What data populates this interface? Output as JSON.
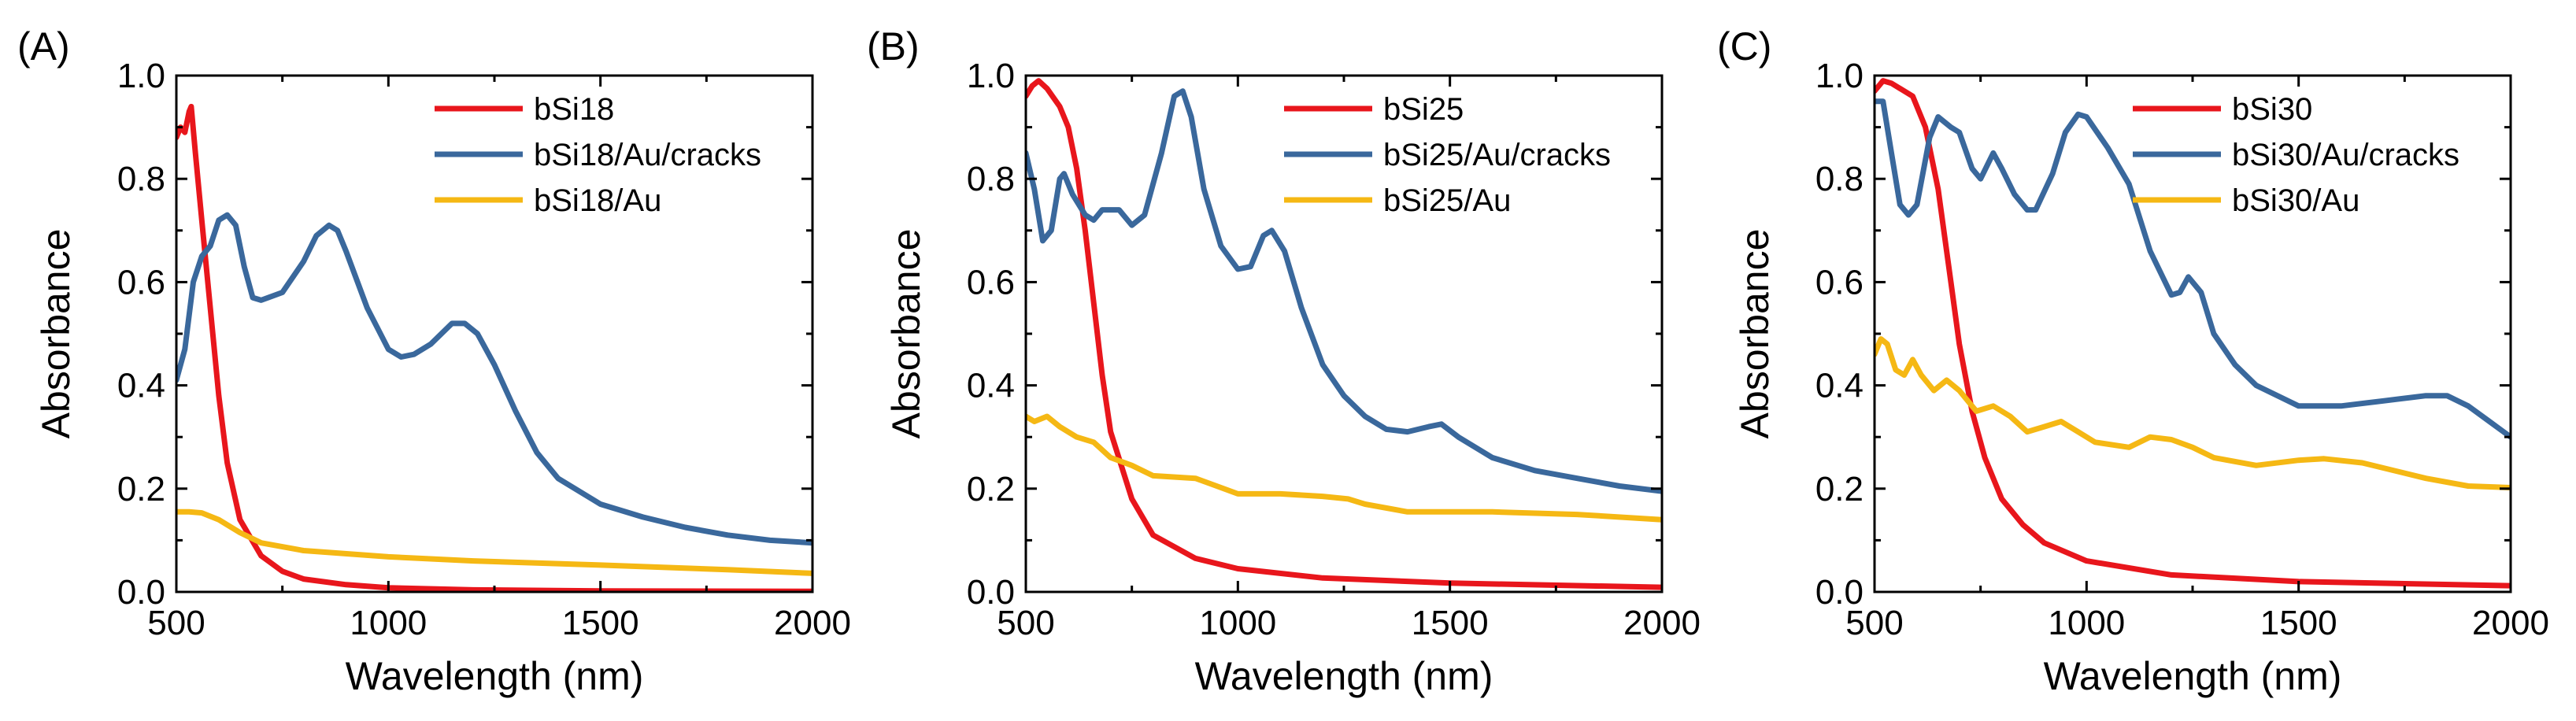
{
  "figure": {
    "colors": {
      "bSi": "#e8161c",
      "cracks": "#3a689c",
      "au": "#f5b814",
      "axis": "#000000"
    }
  },
  "chart_data": [
    {
      "panel": "(A)",
      "type": "line",
      "xlabel": "Wavelength (nm)",
      "ylabel": "Absorbance",
      "xlim": [
        500,
        2000
      ],
      "ylim": [
        0.0,
        1.0
      ],
      "xticks": [
        "500",
        "1000",
        "1500",
        "2000"
      ],
      "yticks": [
        "0.0",
        "0.2",
        "0.4",
        "0.6",
        "0.8",
        "1.0"
      ],
      "legend": "top-right",
      "series": [
        {
          "name": "bSi18",
          "color": "#e8161c",
          "points": [
            [
              500,
              0.88
            ],
            [
              510,
              0.9
            ],
            [
              520,
              0.89
            ],
            [
              530,
              0.93
            ],
            [
              535,
              0.94
            ],
            [
              545,
              0.85
            ],
            [
              560,
              0.72
            ],
            [
              580,
              0.55
            ],
            [
              600,
              0.38
            ],
            [
              620,
              0.25
            ],
            [
              650,
              0.14
            ],
            [
              700,
              0.07
            ],
            [
              750,
              0.04
            ],
            [
              800,
              0.025
            ],
            [
              900,
              0.014
            ],
            [
              1000,
              0.008
            ],
            [
              1200,
              0.004
            ],
            [
              1500,
              0.002
            ],
            [
              2000,
              0.001
            ]
          ]
        },
        {
          "name": "bSi18/Au/cracks",
          "color": "#3a689c",
          "points": [
            [
              500,
              0.41
            ],
            [
              520,
              0.47
            ],
            [
              540,
              0.6
            ],
            [
              560,
              0.65
            ],
            [
              580,
              0.67
            ],
            [
              600,
              0.72
            ],
            [
              620,
              0.73
            ],
            [
              640,
              0.71
            ],
            [
              660,
              0.63
            ],
            [
              680,
              0.57
            ],
            [
              700,
              0.565
            ],
            [
              750,
              0.58
            ],
            [
              800,
              0.64
            ],
            [
              830,
              0.69
            ],
            [
              860,
              0.71
            ],
            [
              880,
              0.7
            ],
            [
              900,
              0.66
            ],
            [
              950,
              0.55
            ],
            [
              1000,
              0.47
            ],
            [
              1030,
              0.455
            ],
            [
              1060,
              0.46
            ],
            [
              1100,
              0.48
            ],
            [
              1150,
              0.52
            ],
            [
              1180,
              0.52
            ],
            [
              1210,
              0.5
            ],
            [
              1250,
              0.44
            ],
            [
              1300,
              0.35
            ],
            [
              1350,
              0.27
            ],
            [
              1400,
              0.22
            ],
            [
              1500,
              0.17
            ],
            [
              1600,
              0.145
            ],
            [
              1700,
              0.125
            ],
            [
              1800,
              0.11
            ],
            [
              1900,
              0.1
            ],
            [
              2000,
              0.095
            ]
          ]
        },
        {
          "name": "bSi18/Au",
          "color": "#f5b814",
          "points": [
            [
              500,
              0.155
            ],
            [
              530,
              0.155
            ],
            [
              560,
              0.153
            ],
            [
              600,
              0.14
            ],
            [
              650,
              0.115
            ],
            [
              700,
              0.095
            ],
            [
              800,
              0.08
            ],
            [
              1000,
              0.068
            ],
            [
              1200,
              0.06
            ],
            [
              1500,
              0.052
            ],
            [
              1800,
              0.043
            ],
            [
              2000,
              0.036
            ]
          ]
        }
      ]
    },
    {
      "panel": "(B)",
      "type": "line",
      "xlabel": "Wavelength (nm)",
      "ylabel": "Absorbance",
      "xlim": [
        500,
        2000
      ],
      "ylim": [
        0.0,
        1.0
      ],
      "xticks": [
        "500",
        "1000",
        "1500",
        "2000"
      ],
      "yticks": [
        "0.0",
        "0.2",
        "0.4",
        "0.6",
        "0.8",
        "1.0"
      ],
      "legend": "top-right",
      "series": [
        {
          "name": "bSi25",
          "color": "#e8161c",
          "points": [
            [
              500,
              0.96
            ],
            [
              515,
              0.98
            ],
            [
              530,
              0.99
            ],
            [
              550,
              0.975
            ],
            [
              580,
              0.94
            ],
            [
              600,
              0.9
            ],
            [
              620,
              0.82
            ],
            [
              640,
              0.7
            ],
            [
              660,
              0.56
            ],
            [
              680,
              0.42
            ],
            [
              700,
              0.31
            ],
            [
              750,
              0.18
            ],
            [
              800,
              0.11
            ],
            [
              900,
              0.065
            ],
            [
              1000,
              0.045
            ],
            [
              1200,
              0.027
            ],
            [
              1500,
              0.017
            ],
            [
              2000,
              0.009
            ]
          ]
        },
        {
          "name": "bSi25/Au/cracks",
          "color": "#3a689c",
          "points": [
            [
              500,
              0.85
            ],
            [
              520,
              0.78
            ],
            [
              540,
              0.68
            ],
            [
              560,
              0.7
            ],
            [
              580,
              0.8
            ],
            [
              590,
              0.81
            ],
            [
              610,
              0.77
            ],
            [
              640,
              0.73
            ],
            [
              660,
              0.72
            ],
            [
              680,
              0.74
            ],
            [
              720,
              0.74
            ],
            [
              750,
              0.71
            ],
            [
              780,
              0.73
            ],
            [
              820,
              0.85
            ],
            [
              850,
              0.96
            ],
            [
              870,
              0.97
            ],
            [
              890,
              0.92
            ],
            [
              920,
              0.78
            ],
            [
              960,
              0.67
            ],
            [
              1000,
              0.625
            ],
            [
              1030,
              0.63
            ],
            [
              1060,
              0.69
            ],
            [
              1080,
              0.7
            ],
            [
              1110,
              0.66
            ],
            [
              1150,
              0.55
            ],
            [
              1200,
              0.44
            ],
            [
              1250,
              0.38
            ],
            [
              1300,
              0.34
            ],
            [
              1350,
              0.315
            ],
            [
              1400,
              0.31
            ],
            [
              1450,
              0.32
            ],
            [
              1480,
              0.325
            ],
            [
              1520,
              0.3
            ],
            [
              1600,
              0.26
            ],
            [
              1700,
              0.235
            ],
            [
              1800,
              0.22
            ],
            [
              1900,
              0.205
            ],
            [
              2000,
              0.195
            ]
          ]
        },
        {
          "name": "bSi25/Au",
          "color": "#f5b814",
          "points": [
            [
              500,
              0.34
            ],
            [
              520,
              0.33
            ],
            [
              550,
              0.34
            ],
            [
              580,
              0.32
            ],
            [
              620,
              0.3
            ],
            [
              660,
              0.29
            ],
            [
              700,
              0.26
            ],
            [
              750,
              0.245
            ],
            [
              800,
              0.225
            ],
            [
              900,
              0.22
            ],
            [
              950,
              0.205
            ],
            [
              1000,
              0.19
            ],
            [
              1100,
              0.19
            ],
            [
              1200,
              0.185
            ],
            [
              1260,
              0.18
            ],
            [
              1300,
              0.17
            ],
            [
              1400,
              0.155
            ],
            [
              1600,
              0.155
            ],
            [
              1800,
              0.15
            ],
            [
              2000,
              0.14
            ]
          ]
        }
      ]
    },
    {
      "panel": "(C)",
      "type": "line",
      "xlabel": "Wavelength (nm)",
      "ylabel": "Absorbance",
      "xlim": [
        500,
        2000
      ],
      "ylim": [
        0.0,
        1.0
      ],
      "xticks": [
        "500",
        "1000",
        "1500",
        "2000"
      ],
      "yticks": [
        "0.0",
        "0.2",
        "0.4",
        "0.6",
        "0.8",
        "1.0"
      ],
      "legend": "top-right",
      "series": [
        {
          "name": "bSi30",
          "color": "#e8161c",
          "points": [
            [
              500,
              0.97
            ],
            [
              520,
              0.99
            ],
            [
              540,
              0.985
            ],
            [
              560,
              0.975
            ],
            [
              590,
              0.96
            ],
            [
              620,
              0.9
            ],
            [
              650,
              0.78
            ],
            [
              680,
              0.6
            ],
            [
              700,
              0.48
            ],
            [
              730,
              0.35
            ],
            [
              760,
              0.26
            ],
            [
              800,
              0.18
            ],
            [
              850,
              0.13
            ],
            [
              900,
              0.095
            ],
            [
              1000,
              0.06
            ],
            [
              1200,
              0.033
            ],
            [
              1500,
              0.02
            ],
            [
              2000,
              0.012
            ]
          ]
        },
        {
          "name": "bSi30/Au/cracks",
          "color": "#3a689c",
          "points": [
            [
              500,
              0.95
            ],
            [
              520,
              0.95
            ],
            [
              540,
              0.85
            ],
            [
              560,
              0.75
            ],
            [
              580,
              0.73
            ],
            [
              600,
              0.75
            ],
            [
              630,
              0.88
            ],
            [
              650,
              0.92
            ],
            [
              680,
              0.9
            ],
            [
              700,
              0.89
            ],
            [
              730,
              0.82
            ],
            [
              750,
              0.8
            ],
            [
              780,
              0.85
            ],
            [
              800,
              0.82
            ],
            [
              830,
              0.77
            ],
            [
              860,
              0.74
            ],
            [
              880,
              0.74
            ],
            [
              920,
              0.81
            ],
            [
              950,
              0.89
            ],
            [
              980,
              0.925
            ],
            [
              1000,
              0.92
            ],
            [
              1050,
              0.86
            ],
            [
              1100,
              0.79
            ],
            [
              1150,
              0.66
            ],
            [
              1200,
              0.575
            ],
            [
              1220,
              0.58
            ],
            [
              1240,
              0.61
            ],
            [
              1270,
              0.58
            ],
            [
              1300,
              0.5
            ],
            [
              1350,
              0.44
            ],
            [
              1400,
              0.4
            ],
            [
              1500,
              0.36
            ],
            [
              1600,
              0.36
            ],
            [
              1700,
              0.37
            ],
            [
              1800,
              0.38
            ],
            [
              1850,
              0.38
            ],
            [
              1900,
              0.36
            ],
            [
              1950,
              0.33
            ],
            [
              2000,
              0.3
            ]
          ]
        },
        {
          "name": "bSi30/Au",
          "color": "#f5b814",
          "points": [
            [
              500,
              0.46
            ],
            [
              515,
              0.49
            ],
            [
              530,
              0.48
            ],
            [
              550,
              0.43
            ],
            [
              570,
              0.42
            ],
            [
              590,
              0.45
            ],
            [
              610,
              0.42
            ],
            [
              640,
              0.39
            ],
            [
              670,
              0.41
            ],
            [
              700,
              0.39
            ],
            [
              740,
              0.35
            ],
            [
              780,
              0.36
            ],
            [
              820,
              0.34
            ],
            [
              860,
              0.31
            ],
            [
              900,
              0.32
            ],
            [
              940,
              0.33
            ],
            [
              980,
              0.31
            ],
            [
              1020,
              0.29
            ],
            [
              1100,
              0.28
            ],
            [
              1150,
              0.3
            ],
            [
              1200,
              0.295
            ],
            [
              1250,
              0.28
            ],
            [
              1300,
              0.26
            ],
            [
              1400,
              0.245
            ],
            [
              1500,
              0.255
            ],
            [
              1560,
              0.258
            ],
            [
              1650,
              0.25
            ],
            [
              1800,
              0.22
            ],
            [
              1900,
              0.205
            ],
            [
              2000,
              0.202
            ]
          ]
        }
      ]
    }
  ]
}
